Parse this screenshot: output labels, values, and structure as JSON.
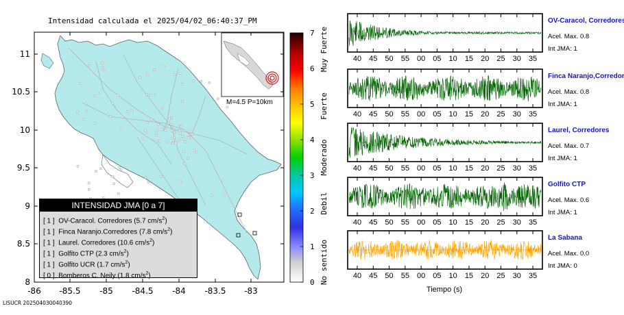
{
  "title": "Intensidad calculada el 2025/04/02_06:40:37_PM",
  "footer_id": "LISUCR 202504030040390",
  "map": {
    "xticks": [
      "-86",
      "-85.5",
      "-85",
      "-84.5",
      "-84",
      "-83.5",
      "-83"
    ],
    "yticks": [
      "11",
      "10.5",
      "10",
      "9.5",
      "9",
      "8.5",
      "8"
    ],
    "inset_label": "M=4.5  P=10km",
    "land_color": "#b4eaec"
  },
  "colorbar": {
    "ticks": [
      "0",
      "1",
      "2",
      "3",
      "4",
      "5",
      "6",
      "7"
    ],
    "zones": [
      "No sentido",
      "Debil",
      "Moderado",
      "Fuerte",
      "Muy Fuerte"
    ]
  },
  "legend": {
    "header": "INTENSIDAD JMA [0 a 7]",
    "rows": [
      {
        "level": "[ 1 ]",
        "text": "OV-Caracol. Corredores (5.7 cm/s",
        "sup": "2",
        "end": ")"
      },
      {
        "level": "[ 1 ]",
        "text": "Finca Naranjo.Corredores (7.8 cm/s",
        "sup": "2",
        "end": ")"
      },
      {
        "level": "[ 1 ]",
        "text": "Laurel. Corredores (10.6 cm/s",
        "sup": "2",
        "end": ")"
      },
      {
        "level": "[ 1 ]",
        "text": "Golfito CTP (2.3 cm/s",
        "sup": "2",
        "end": ")"
      },
      {
        "level": "[ 1 ]",
        "text": "Golfito UCR (1.7 cm/s",
        "sup": "2",
        "end": ")"
      },
      {
        "level": "[ 0 ]",
        "text": "Bomberos C. Neily (1.8 cm/s",
        "sup": "2",
        "end": ")"
      }
    ]
  },
  "chart_data": {
    "type": "line",
    "xlabel": "Tiempo (s)",
    "xticks": [
      "40",
      "45",
      "50",
      "55",
      "00",
      "05",
      "10",
      "15",
      "20",
      "25",
      "30",
      "35"
    ],
    "series": [
      {
        "name": "OV-Caracol, Corredores",
        "acel": "Acel. Max. 0.8",
        "int": "Int JMA: 1",
        "color": "#006400",
        "decay": 0.22
      },
      {
        "name": "Finca Naranjo,Corredores",
        "acel": "Acel. Max. 0.8",
        "int": "Int JMA: 1",
        "color": "#006400",
        "decay": 0.0
      },
      {
        "name": "Laurel, Corredores",
        "acel": "Acel. Max. 0.7",
        "int": "Int JMA: 1",
        "color": "#006400",
        "decay": 0.12
      },
      {
        "name": "Golfito CTP",
        "acel": "Acel. Max. 0.6",
        "int": "Int JMA: 1",
        "color": "#006400",
        "decay": 0.0
      },
      {
        "name": "La Sabana",
        "acel": "Acel. Max. 0.0",
        "int": "Int JMA: 0",
        "color": "#ffa500",
        "decay": 0.0
      }
    ]
  }
}
